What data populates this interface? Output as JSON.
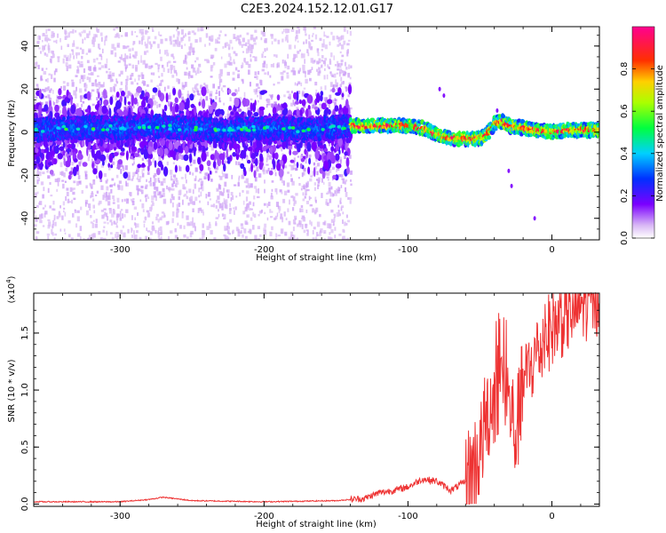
{
  "figure": {
    "title": "C2E3.2024.152.12.01.G17"
  },
  "chart_data": [
    {
      "type": "heatmap",
      "xlabel": "Height of straight line (km)",
      "ylabel": "Frequency (Hz)",
      "xlim": [
        -360,
        33
      ],
      "ylim": [
        -50,
        49
      ],
      "xticks": [
        "-300",
        "-200",
        "-100",
        "0"
      ],
      "yticks": [
        "-40",
        "-20",
        "0",
        "20",
        "40"
      ],
      "colorbar": {
        "label": "Normalized spectral amplitude",
        "range": [
          0,
          1
        ],
        "ticks": [
          "0.0",
          "0.2",
          "0.4",
          "0.6",
          "0.8"
        ]
      },
      "ridge": {
        "x": [
          -360,
          -330,
          -300,
          -280,
          -260,
          -230,
          -200,
          -170,
          -140,
          -120,
          -100,
          -90,
          -80,
          -70,
          -60,
          -50,
          -45,
          -40,
          -35,
          -30,
          -20,
          -10,
          0,
          10,
          20,
          33
        ],
        "y": [
          1,
          2,
          2,
          3,
          2,
          1,
          2,
          1,
          3,
          3,
          3,
          2,
          -1,
          -3,
          -3,
          -3,
          -1,
          4,
          5,
          3,
          2,
          1,
          0,
          1,
          1,
          1
        ]
      },
      "noisy_segment_x": [
        -360,
        -140
      ],
      "clean_segment_x": [
        -140,
        33
      ]
    },
    {
      "type": "line",
      "xlabel": "Height of straight line (km)",
      "ylabel": "SNR (10 * v/v)",
      "y_multiplier": "(x10",
      "y_multiplier_exp": "4",
      "xlim": [
        -360,
        33
      ],
      "ylim": [
        -0.02,
        1.85
      ],
      "xticks": [
        "-300",
        "-200",
        "-100",
        "0"
      ],
      "yticks": [
        "0.0",
        "0.5",
        "1.0",
        "1.5"
      ],
      "color": "#ee3333",
      "series": [
        {
          "x": [
            -360,
            -300,
            -280,
            -270,
            -250,
            -200,
            -150,
            -130,
            -120,
            -110,
            -100,
            -90,
            -80,
            -70,
            -60,
            -50,
            -45,
            -40,
            -35,
            -30,
            -25,
            -20,
            -15,
            -10,
            -5,
            0,
            10,
            20,
            33
          ],
          "y": [
            0.02,
            0.02,
            0.04,
            0.06,
            0.03,
            0.02,
            0.03,
            0.05,
            0.1,
            0.12,
            0.15,
            0.22,
            0.2,
            0.12,
            0.2,
            0.45,
            0.8,
            0.95,
            1.1,
            0.9,
            0.6,
            1.05,
            1.2,
            1.3,
            1.45,
            1.55,
            1.65,
            1.75,
            1.82
          ]
        }
      ]
    }
  ]
}
